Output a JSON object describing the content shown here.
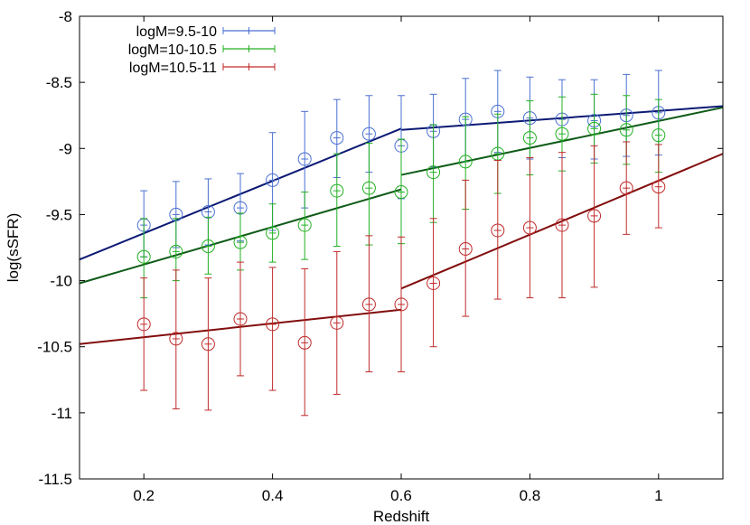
{
  "chart_data": {
    "type": "scatter",
    "title": "",
    "xlabel": "Redshift",
    "ylabel": "log(sSFR)",
    "xlim": [
      0.1,
      1.1
    ],
    "ylim": [
      -11.5,
      -8
    ],
    "xticks": [
      0.2,
      0.4,
      0.6,
      0.8,
      1
    ],
    "xtick_labels": [
      "0.2",
      "0.4",
      "0.6",
      "0.8",
      "1"
    ],
    "yticks": [
      -11.5,
      -11,
      -10.5,
      -10,
      -9.5,
      -9,
      -8.5,
      -8
    ],
    "ytick_labels": [
      "-11.5",
      "-11",
      "-10.5",
      "-10",
      "-9.5",
      "-9",
      "-8.5",
      "-8"
    ],
    "grid": false,
    "legend_position": "top-left",
    "x": [
      0.2,
      0.25,
      0.3,
      0.35,
      0.4,
      0.45,
      0.5,
      0.55,
      0.6,
      0.65,
      0.7,
      0.75,
      0.8,
      0.85,
      0.9,
      0.95,
      1.0
    ],
    "series": [
      {
        "name": "logM=9.5-10",
        "color": "#4a6fd2",
        "fit_color": "#0b1973",
        "y": [
          -9.58,
          -9.5,
          -9.48,
          -9.45,
          -9.24,
          -9.08,
          -8.92,
          -8.89,
          -8.98,
          -8.87,
          -8.78,
          -8.72,
          -8.77,
          -8.78,
          -8.79,
          -8.75,
          -8.73
        ],
        "ylow": [
          -9.82,
          -9.75,
          -9.73,
          -9.7,
          -9.62,
          -9.45,
          -9.22,
          -9.18,
          -9.38,
          -9.14,
          -9.1,
          -9.03,
          -9.08,
          -9.07,
          -9.08,
          -9.06,
          -9.05
        ],
        "yhigh": [
          -9.32,
          -9.25,
          -9.23,
          -9.19,
          -8.88,
          -8.72,
          -8.63,
          -8.6,
          -8.6,
          -8.59,
          -8.47,
          -8.41,
          -8.46,
          -8.48,
          -8.48,
          -8.44,
          -8.41
        ],
        "fits": [
          {
            "x": [
              0.1,
              0.6
            ],
            "y": [
              -9.84,
              -8.85
            ]
          },
          {
            "x": [
              0.6,
              1.1
            ],
            "y": [
              -8.86,
              -8.68
            ]
          }
        ]
      },
      {
        "name": "logM=10-10.5",
        "color": "#22b022",
        "fit_color": "#0e5b17",
        "y": [
          -9.82,
          -9.78,
          -9.74,
          -9.71,
          -9.64,
          -9.58,
          -9.32,
          -9.3,
          -9.33,
          -9.18,
          -9.1,
          -9.04,
          -8.92,
          -8.89,
          -8.85,
          -8.86,
          -8.9
        ],
        "ylow": [
          -10.13,
          -10.0,
          -9.95,
          -9.92,
          -9.86,
          -9.84,
          -9.74,
          -9.73,
          -9.72,
          -9.56,
          -9.46,
          -9.34,
          -9.2,
          -9.17,
          -9.11,
          -9.12,
          -9.18
        ],
        "yhigh": [
          -9.53,
          -9.53,
          -9.52,
          -9.49,
          -9.42,
          -9.33,
          -9.04,
          -8.96,
          -8.93,
          -8.82,
          -8.76,
          -8.74,
          -8.64,
          -8.61,
          -8.59,
          -8.6,
          -8.63
        ],
        "fits": [
          {
            "x": [
              0.1,
              0.6
            ],
            "y": [
              -10.02,
              -9.31
            ]
          },
          {
            "x": [
              0.6,
              1.1
            ],
            "y": [
              -9.2,
              -8.69
            ]
          }
        ]
      },
      {
        "name": "logM=10.5-11",
        "color": "#c02a2a",
        "fit_color": "#820d0d",
        "y": [
          -10.33,
          -10.44,
          -10.48,
          -10.29,
          -10.33,
          -10.47,
          -10.32,
          -10.18,
          -10.18,
          -10.02,
          -9.76,
          -9.62,
          -9.6,
          -9.58,
          -9.51,
          -9.3,
          -9.29
        ],
        "ylow": [
          -10.83,
          -10.97,
          -10.98,
          -10.72,
          -10.83,
          -11.02,
          -10.86,
          -10.69,
          -10.69,
          -10.5,
          -10.27,
          -10.14,
          -10.13,
          -10.13,
          -10.05,
          -9.65,
          -9.6
        ],
        "yhigh": [
          -9.98,
          -9.92,
          -9.98,
          -9.86,
          -9.9,
          -9.91,
          -9.78,
          -9.66,
          -9.67,
          -9.53,
          -9.24,
          -9.09,
          -9.07,
          -9.03,
          -8.98,
          -8.95,
          -8.97
        ],
        "fits": [
          {
            "x": [
              0.1,
              0.6
            ],
            "y": [
              -10.48,
              -10.22
            ]
          },
          {
            "x": [
              0.6,
              1.1
            ],
            "y": [
              -10.06,
              -9.04
            ]
          }
        ]
      }
    ]
  }
}
